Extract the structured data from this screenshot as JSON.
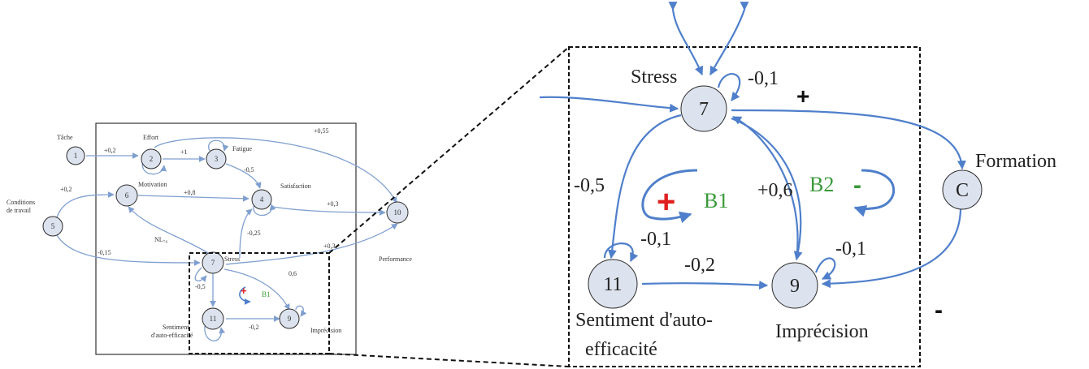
{
  "small_diagram": {
    "nodes": {
      "n1": {
        "id": "1",
        "label": "Tâche"
      },
      "n2": {
        "id": "2",
        "label": "Effort"
      },
      "n3": {
        "id": "3",
        "label": "Fatigue"
      },
      "n4": {
        "id": "4",
        "label": "Satisfaction"
      },
      "n5": {
        "id": "5",
        "label_line1": "Conditions",
        "label_line2": "de travail"
      },
      "n6": {
        "id": "6",
        "label": "Motivation"
      },
      "n7": {
        "id": "7",
        "label": "Stress"
      },
      "n9": {
        "id": "9",
        "label": "Imprécision"
      },
      "n10": {
        "id": "10",
        "label": "Performance"
      },
      "n11": {
        "id": "11",
        "label_line1": "Sentiment",
        "label_line2": "d'auto-efficacité"
      }
    },
    "edge_labels": {
      "e1_2": "+0,2",
      "e2_3": "+1",
      "e3_4": "-0,5",
      "e2_10": "+0,55",
      "e5_6": "+0,2",
      "e6_4": "+0,8",
      "e4_10": "+0,3",
      "e7_6": "NL₇₆",
      "e7_4": "-0,25",
      "e5_7": "-0,15",
      "e7_10": "+0,3",
      "e7_9": "0,6",
      "e7_11": "-0,5",
      "e11_9": "-0,2"
    },
    "loop": {
      "plus": "+",
      "label": "B1"
    }
  },
  "big_diagram": {
    "nodes": {
      "n7": {
        "id": "7",
        "label": "Stress"
      },
      "n11": {
        "id": "11",
        "label_line1": "Sentiment d'auto-",
        "label_line2": "efficacité"
      },
      "n9": {
        "id": "9",
        "label": "Imprécision"
      },
      "nC": {
        "id": "C",
        "label": "Formation"
      }
    },
    "edge_labels": {
      "self7": "-0,1",
      "e7_11": "-0,5",
      "e7_9": "+0,6",
      "self11": "-0,1",
      "e11_9": "-0,2",
      "self9": "-0,1"
    },
    "loops": {
      "b1": {
        "sign": "+",
        "label": "B1"
      },
      "b2": {
        "sign": "-",
        "label": "B2"
      }
    },
    "signs": {
      "to_formation": "+",
      "to_imprecision": "-"
    }
  },
  "colors": {
    "node_fill": "#dde3ee",
    "edge_small": "#7f9fd0",
    "edge_big": "#4f7fcb",
    "positive_loop": "#e02020",
    "balancing_loop": "#3a9a3a"
  }
}
